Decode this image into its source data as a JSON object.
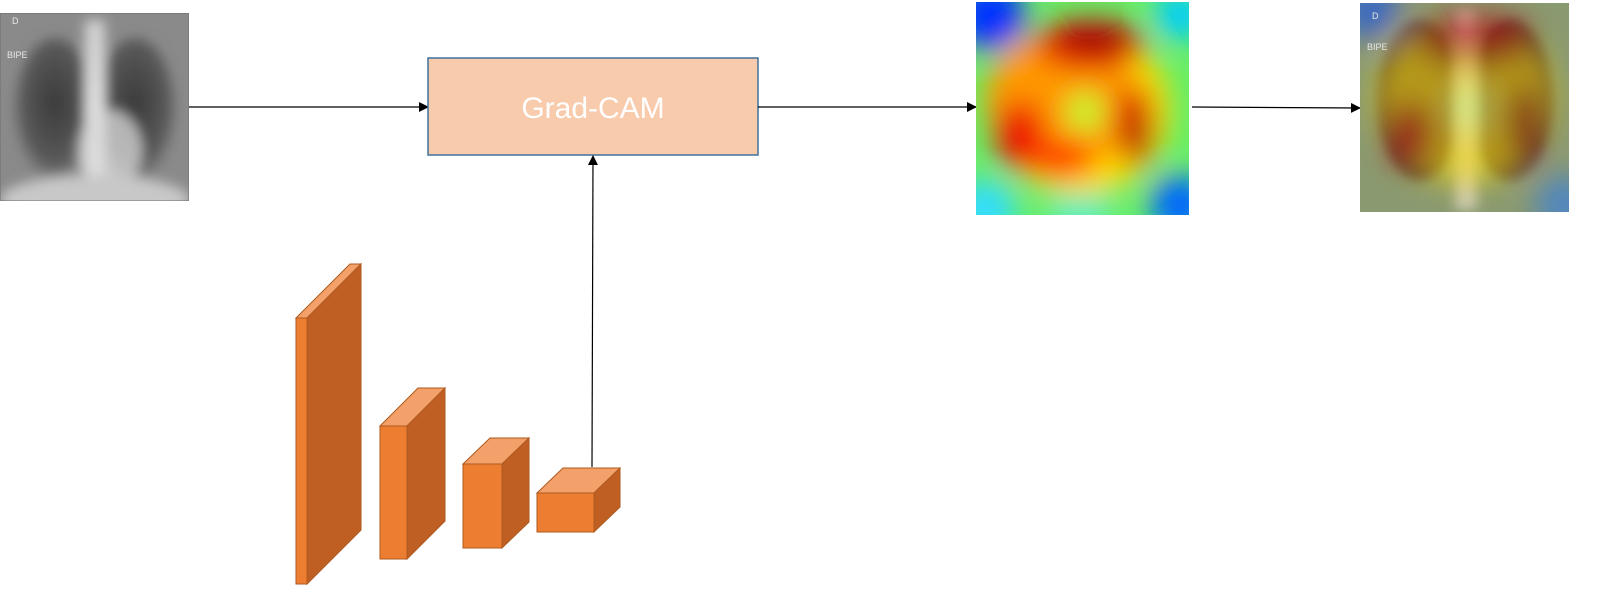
{
  "gradcam_box": {
    "label": "Grad-CAM",
    "fill": "#f8cbad",
    "stroke": "#41719c"
  },
  "input_xray": {
    "marker_top": "D",
    "marker_side": "BIPE"
  },
  "overlay_xray": {
    "marker_top": "D",
    "marker_side": "BIPE"
  },
  "cnn_blocks": {
    "count": 4,
    "front": "#ed7d31",
    "side": "#c05f24",
    "top": "#f3a06b"
  },
  "heatmap": {
    "colormap": "jet"
  },
  "arrow_color": "#000000"
}
